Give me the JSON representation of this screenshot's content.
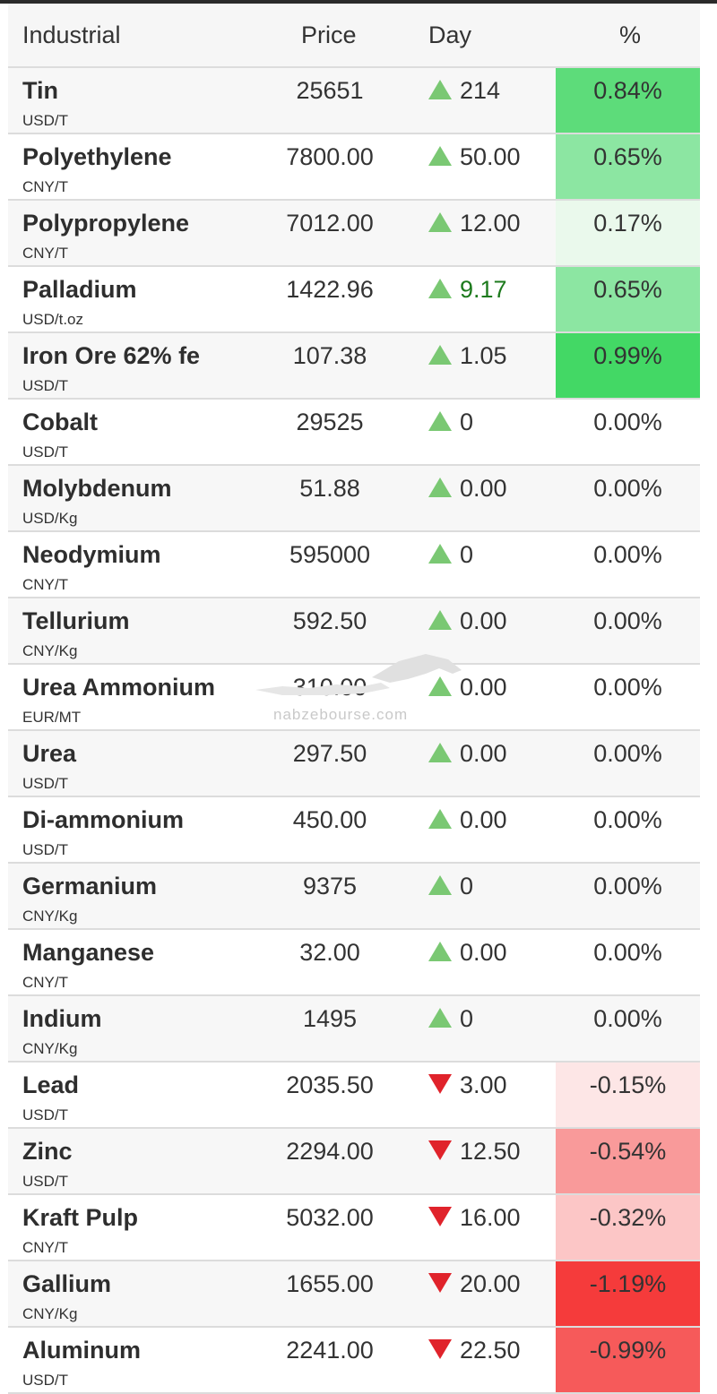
{
  "header": {
    "industrial": "Industrial",
    "price": "Price",
    "day": "Day",
    "percent": "%"
  },
  "watermark": {
    "text": "nabzebourse.com"
  },
  "rows": [
    {
      "name": "Tin",
      "unit": "USD/T",
      "price": "25651",
      "day": "214",
      "dir": "up",
      "pct": "0.84%",
      "pct_color": "#5ddc7a"
    },
    {
      "name": "Polyethylene",
      "unit": "CNY/T",
      "price": "7800.00",
      "day": "50.00",
      "dir": "up",
      "pct": "0.65%",
      "pct_color": "#8ce6a2"
    },
    {
      "name": "Polypropylene",
      "unit": "CNY/T",
      "price": "7012.00",
      "day": "12.00",
      "dir": "up",
      "pct": "0.17%",
      "pct_color": "#eaf9ec"
    },
    {
      "name": "Palladium",
      "unit": "USD/t.oz",
      "price": "1422.96",
      "day": "9.17",
      "dir": "up",
      "day_color": "green",
      "pct": "0.65%",
      "pct_color": "#8ce6a2"
    },
    {
      "name": "Iron Ore 62% fe",
      "unit": "USD/T",
      "price": "107.38",
      "day": "1.05",
      "dir": "up",
      "pct": "0.99%",
      "pct_color": "#43d865"
    },
    {
      "name": "Cobalt",
      "unit": "USD/T",
      "price": "29525",
      "day": "0",
      "dir": "up",
      "pct": "0.00%",
      "pct_color": ""
    },
    {
      "name": "Molybdenum",
      "unit": "USD/Kg",
      "price": "51.88",
      "day": "0.00",
      "dir": "up",
      "pct": "0.00%",
      "pct_color": ""
    },
    {
      "name": "Neodymium",
      "unit": "CNY/T",
      "price": "595000",
      "day": "0",
      "dir": "up",
      "pct": "0.00%",
      "pct_color": ""
    },
    {
      "name": "Tellurium",
      "unit": "CNY/Kg",
      "price": "592.50",
      "day": "0.00",
      "dir": "up",
      "pct": "0.00%",
      "pct_color": ""
    },
    {
      "name": "Urea Ammonium",
      "unit": "EUR/MT",
      "price": "310.00",
      "day": "0.00",
      "dir": "up",
      "pct": "0.00%",
      "pct_color": ""
    },
    {
      "name": "Urea",
      "unit": "USD/T",
      "price": "297.50",
      "day": "0.00",
      "dir": "up",
      "pct": "0.00%",
      "pct_color": ""
    },
    {
      "name": "Di-ammonium",
      "unit": "USD/T",
      "price": "450.00",
      "day": "0.00",
      "dir": "up",
      "pct": "0.00%",
      "pct_color": ""
    },
    {
      "name": "Germanium",
      "unit": "CNY/Kg",
      "price": "9375",
      "day": "0",
      "dir": "up",
      "pct": "0.00%",
      "pct_color": ""
    },
    {
      "name": "Manganese",
      "unit": "CNY/T",
      "price": "32.00",
      "day": "0.00",
      "dir": "up",
      "pct": "0.00%",
      "pct_color": ""
    },
    {
      "name": "Indium",
      "unit": "CNY/Kg",
      "price": "1495",
      "day": "0",
      "dir": "up",
      "pct": "0.00%",
      "pct_color": ""
    },
    {
      "name": "Lead",
      "unit": "USD/T",
      "price": "2035.50",
      "day": "3.00",
      "dir": "down",
      "pct": "-0.15%",
      "pct_color": "#fde6e6"
    },
    {
      "name": "Zinc",
      "unit": "USD/T",
      "price": "2294.00",
      "day": "12.50",
      "dir": "down",
      "pct": "-0.54%",
      "pct_color": "#f99a9a"
    },
    {
      "name": "Kraft Pulp",
      "unit": "CNY/T",
      "price": "5032.00",
      "day": "16.00",
      "dir": "down",
      "pct": "-0.32%",
      "pct_color": "#fcc6c6"
    },
    {
      "name": "Gallium",
      "unit": "CNY/Kg",
      "price": "1655.00",
      "day": "20.00",
      "dir": "down",
      "pct": "-1.19%",
      "pct_color": "#f53b3b"
    },
    {
      "name": "Aluminum",
      "unit": "USD/T",
      "price": "2241.00",
      "day": "22.50",
      "dir": "down",
      "pct": "-0.99%",
      "pct_color": "#f65a5a"
    }
  ]
}
